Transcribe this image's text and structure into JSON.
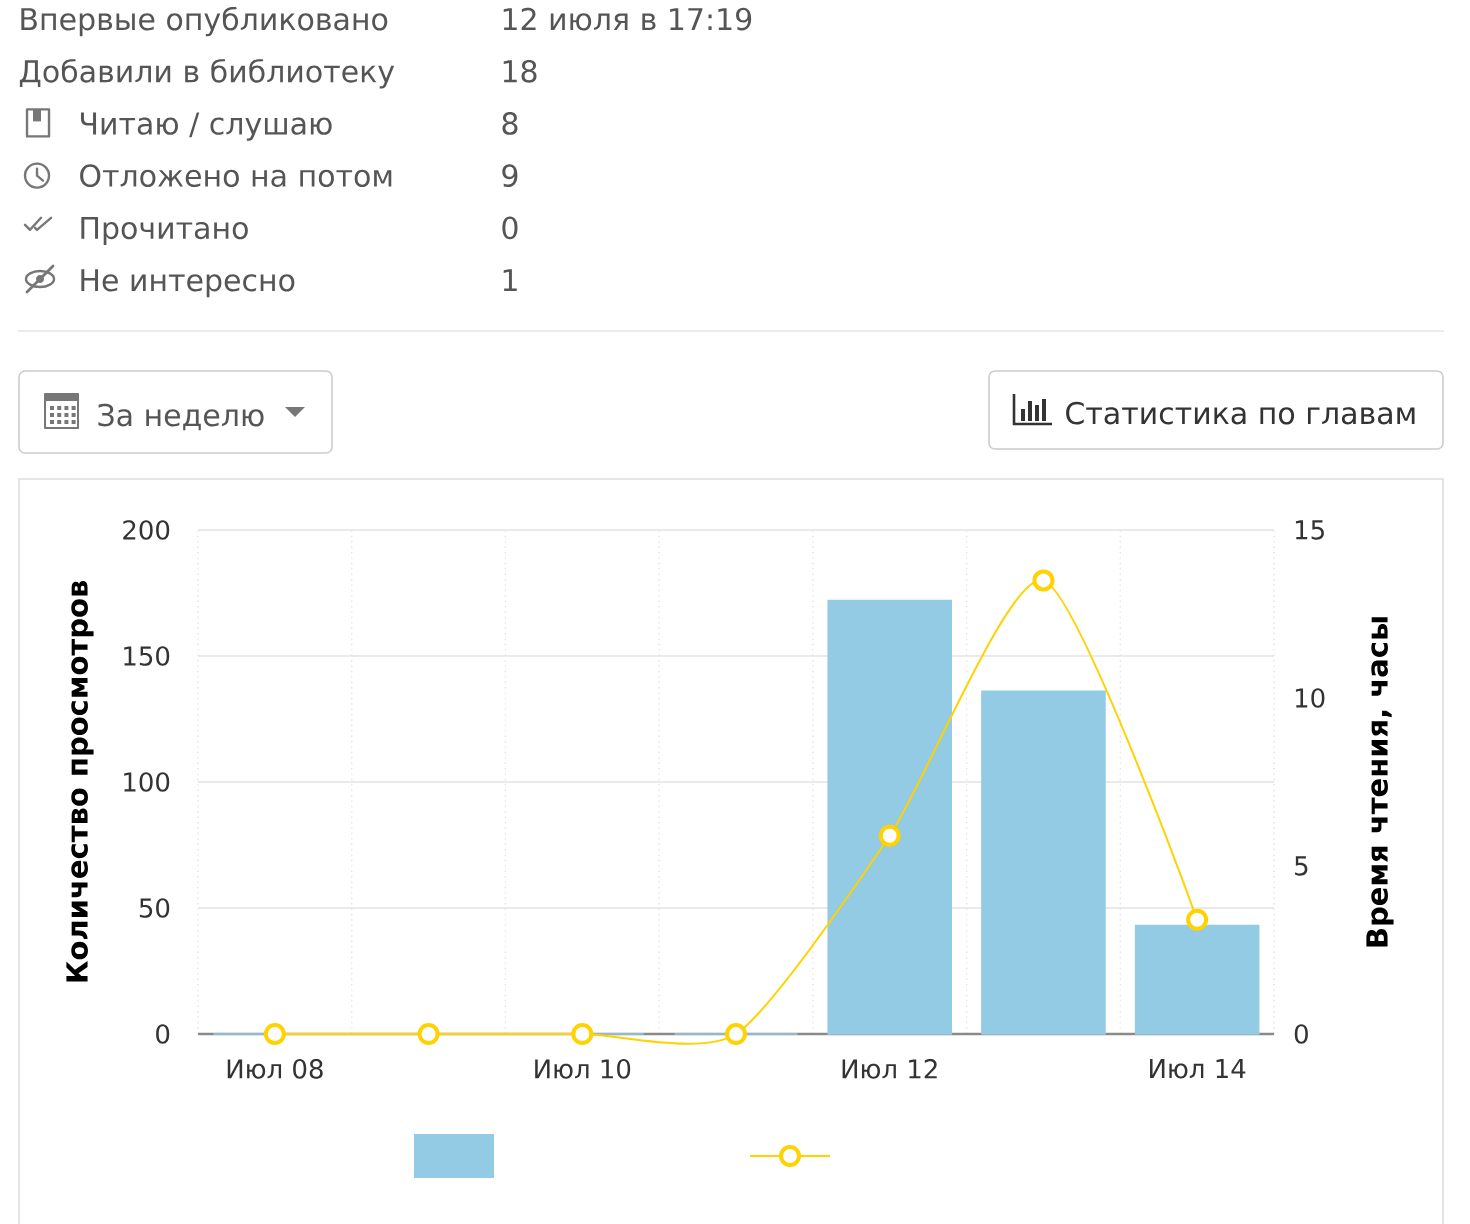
{
  "chart_data": [
    {
      "type": "other",
      "annotations": [
        "Впервые опубликовано",
        "12 июля в 17:19",
        "Добавили в библиотеку",
        "18",
        "Читаю / слушаю",
        "8",
        "Отложено на потом",
        "9",
        "Прочитано",
        "0",
        "Не интересно",
        "1",
        "За неделю",
        "Статистика по главам"
      ]
    },
    {
      "type": "bar",
      "categories": [
        "Июл 08",
        null,
        "Июл 10",
        null,
        "Июл 12",
        null,
        "Июл 14"
      ],
      "series": [
        {
          "type": "bar",
          "color": "#93cae4",
          "values": [
            0,
            0,
            0,
            0,
            172,
            136,
            43
          ]
        },
        {
          "type": "line",
          "axis": "y2",
          "color": "#ffd200",
          "values": [
            0,
            0,
            0,
            0,
            5.9,
            13.5,
            3.4
          ]
        }
      ],
      "ylabel": "Количество просмотров",
      "y2label": "Время чтения, часы",
      "ylim": [
        0,
        200
      ],
      "yticks": [
        0,
        50,
        100,
        150,
        200
      ],
      "y2lim": [
        0,
        15
      ],
      "y2ticks": [
        0,
        5,
        10,
        15
      ],
      "grid": true,
      "marker": "circle",
      "line_style": "solid"
    }
  ]
}
